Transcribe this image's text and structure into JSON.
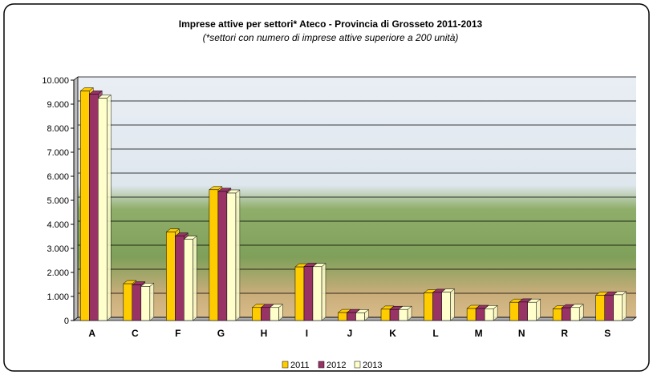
{
  "chart_data": {
    "type": "bar",
    "title": "Imprese attive per settori* Ateco - Provincia di Grosseto 2011-2013",
    "subtitle": "(*settori con numero di  imprese attive superiore a 200 unità)",
    "categories": [
      "A",
      "C",
      "F",
      "G",
      "H",
      "I",
      "J",
      "K",
      "L",
      "M",
      "N",
      "R",
      "S"
    ],
    "series": [
      {
        "name": "2011",
        "color": "#ffcc00",
        "values": [
          9550,
          1530,
          3680,
          5440,
          540,
          2230,
          330,
          470,
          1150,
          500,
          760,
          480,
          1050
        ]
      },
      {
        "name": "2012",
        "color": "#993366",
        "values": [
          9420,
          1480,
          3510,
          5370,
          540,
          2250,
          330,
          460,
          1170,
          500,
          770,
          530,
          1060
        ]
      },
      {
        "name": "2013",
        "color": "#ffffcc",
        "values": [
          9250,
          1420,
          3380,
          5300,
          540,
          2240,
          320,
          460,
          1180,
          490,
          760,
          540,
          1070
        ]
      }
    ],
    "ylim": [
      0,
      10000
    ],
    "yticks": [
      0,
      {
        "value": 1000,
        "label": "1.000"
      },
      {
        "value": 2000,
        "label": "2.000"
      },
      {
        "value": 3000,
        "label": "3.000"
      },
      {
        "value": 4000,
        "label": "4.000"
      },
      {
        "value": 5000,
        "label": "5.000"
      },
      {
        "value": 6000,
        "label": "6.000"
      },
      {
        "value": 7000,
        "label": "7.000"
      },
      {
        "value": 8000,
        "label": "8.000"
      },
      {
        "value": 9000,
        "label": "9.000"
      },
      {
        "value": 10000,
        "label": "10.000"
      }
    ],
    "grid": true,
    "legend": "bottom"
  }
}
